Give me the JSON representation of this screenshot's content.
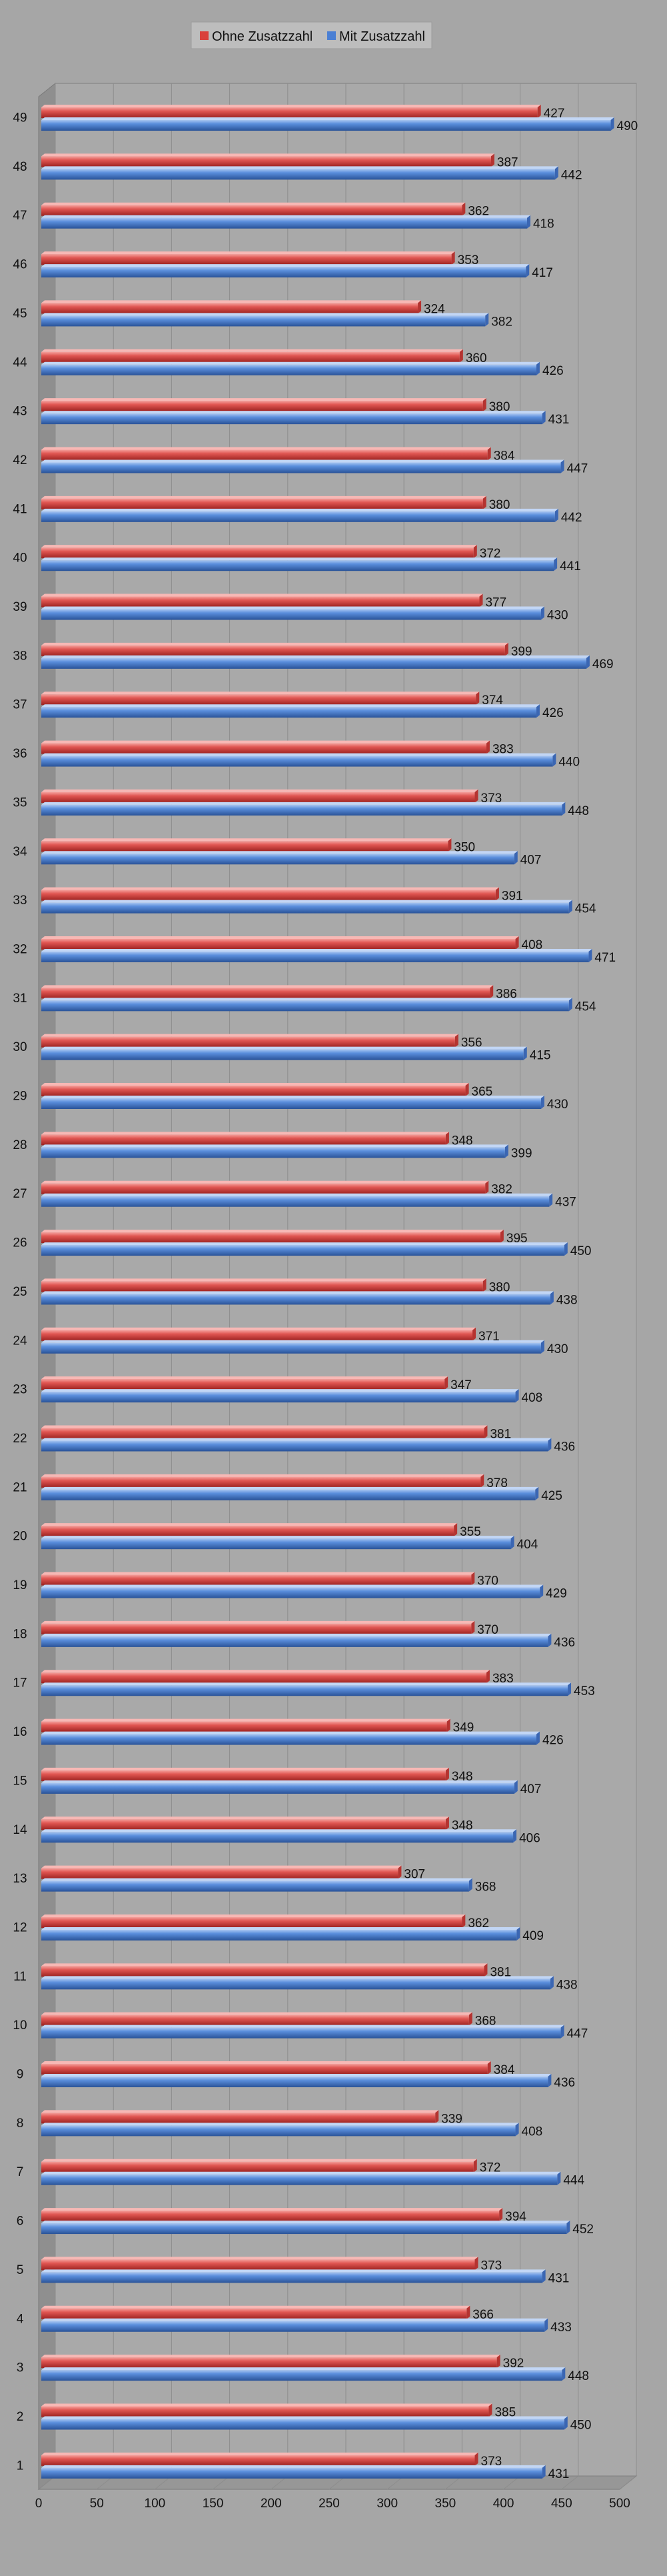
{
  "chart_data": {
    "type": "bar",
    "orientation": "horizontal",
    "categories": [
      "1",
      "2",
      "3",
      "4",
      "5",
      "6",
      "7",
      "8",
      "9",
      "10",
      "11",
      "12",
      "13",
      "14",
      "15",
      "16",
      "17",
      "18",
      "19",
      "20",
      "21",
      "22",
      "23",
      "24",
      "25",
      "26",
      "27",
      "28",
      "29",
      "30",
      "31",
      "32",
      "33",
      "34",
      "35",
      "36",
      "37",
      "38",
      "39",
      "40",
      "41",
      "42",
      "43",
      "44",
      "45",
      "46",
      "47",
      "48",
      "49"
    ],
    "series": [
      {
        "name": "Ohne Zusatzzahl",
        "color": "#d9403c",
        "values": [
          373,
          385,
          392,
          366,
          373,
          394,
          372,
          339,
          384,
          368,
          381,
          362,
          307,
          348,
          348,
          349,
          383,
          370,
          370,
          355,
          378,
          381,
          347,
          371,
          380,
          395,
          382,
          348,
          365,
          356,
          386,
          408,
          391,
          350,
          373,
          383,
          374,
          399,
          377,
          372,
          380,
          384,
          380,
          360,
          324,
          353,
          362,
          387,
          427
        ]
      },
      {
        "name": "Mit Zusatzzahl",
        "color": "#4a7fd4",
        "values": [
          431,
          450,
          448,
          433,
          431,
          452,
          444,
          408,
          436,
          447,
          438,
          409,
          368,
          406,
          407,
          426,
          453,
          436,
          429,
          404,
          425,
          436,
          408,
          430,
          438,
          450,
          437,
          399,
          430,
          415,
          454,
          471,
          454,
          407,
          448,
          440,
          426,
          469,
          430,
          441,
          442,
          447,
          431,
          426,
          382,
          417,
          418,
          442,
          490
        ]
      }
    ],
    "x_ticks": [
      "0",
      "50",
      "100",
      "150",
      "200",
      "250",
      "300",
      "350",
      "400",
      "450",
      "500"
    ],
    "xlim": [
      0,
      500
    ],
    "legend_position": "top-center",
    "grid": true,
    "style": "3d"
  }
}
